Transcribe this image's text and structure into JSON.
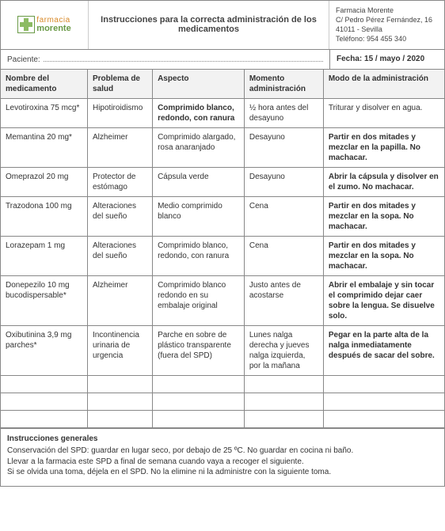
{
  "header": {
    "logo_top": "farmacia",
    "logo_bottom": "morente",
    "title": "Instrucciones para la correcta administración de los medicamentos",
    "pharmacy_name": "Farmacia Morente",
    "address": "C/ Pedro Pérez Fernández, 16",
    "city": "41011 - Sevilla",
    "phone_label": "Teléfono: 954 455 340"
  },
  "meta": {
    "patient_label": "Paciente:",
    "date_label": "Fecha: 15 / mayo / 2020"
  },
  "columns": {
    "c0": "Nombre del medicamento",
    "c1": "Problema de salud",
    "c2": "Aspecto",
    "c3": "Momento administración",
    "c4": "Modo de la administración"
  },
  "rows": [
    {
      "name": "Levotiroxina 75 mcg*",
      "problem": "Hipotiroidismo",
      "aspect": "Comprimido blanco, redondo, con ranura",
      "aspect_bold": true,
      "moment": "½ hora antes del desayuno",
      "mode": "Triturar y disolver en agua.",
      "mode_bold": false
    },
    {
      "name": "Memantina 20 mg*",
      "problem": "Alzheimer",
      "aspect": "Comprimido alargado, rosa anaranjado",
      "aspect_bold": false,
      "moment": "Desayuno",
      "mode": "Partir en dos mitades y mezclar en la papilla. No machacar.",
      "mode_bold": true
    },
    {
      "name": "Omeprazol 20 mg",
      "problem": "Protector de estómago",
      "aspect": "Cápsula verde",
      "aspect_bold": false,
      "moment": "Desayuno",
      "mode": "Abrir la cápsula y disolver en el zumo. No machacar.",
      "mode_bold": true
    },
    {
      "name": "Trazodona 100 mg",
      "problem": "Alteraciones del sueño",
      "aspect": "Medio comprimido blanco",
      "aspect_bold": false,
      "moment": "Cena",
      "mode": "Partir en dos mitades y mezclar en la sopa. No machacar.",
      "mode_bold": true
    },
    {
      "name": "Lorazepam 1 mg",
      "problem": "Alteraciones del sueño",
      "aspect": "Comprimido blanco, redondo, con ranura",
      "aspect_bold": false,
      "moment": "Cena",
      "mode": "Partir en dos mitades y mezclar en la sopa. No machacar.",
      "mode_bold": true
    },
    {
      "name": "Donepezilo 10 mg bucodispersable*",
      "problem": "Alzheimer",
      "aspect": "Comprimido blanco redondo en su embalaje original",
      "aspect_bold": false,
      "moment": "Justo antes de acostarse",
      "mode": "Abrir el embalaje y sin tocar el comprimido dejar caer sobre la lengua. Se disuelve solo.",
      "mode_bold": true
    },
    {
      "name": "Oxibutinina 3,9 mg parches*",
      "problem": "Incontinencia urinaria de urgencia",
      "aspect": "Parche en sobre de plástico transparente (fuera del SPD)",
      "aspect_bold": false,
      "moment": "Lunes nalga derecha y jueves nalga izquierda, por la mañana",
      "mode": "Pegar en la parte alta de la nalga inmediatamente después de sacar del sobre.",
      "mode_bold": true
    }
  ],
  "empty_rows": 3,
  "footer": {
    "title": "Instrucciones generales",
    "line1": "Conservación del SPD: guardar en lugar seco, por debajo de 25 ºC. No guardar en cocina ni baño.",
    "line2": "Llevar a la farmacia este SPD a final de semana cuando vaya a recoger el siguiente.",
    "line3": "Si se olvida una toma, déjela en el SPD. No la elimine ni la administre con la siguiente toma."
  },
  "style": {
    "border_color": "#888888",
    "header_bg": "#f2f2f2",
    "text_color": "#333333"
  }
}
